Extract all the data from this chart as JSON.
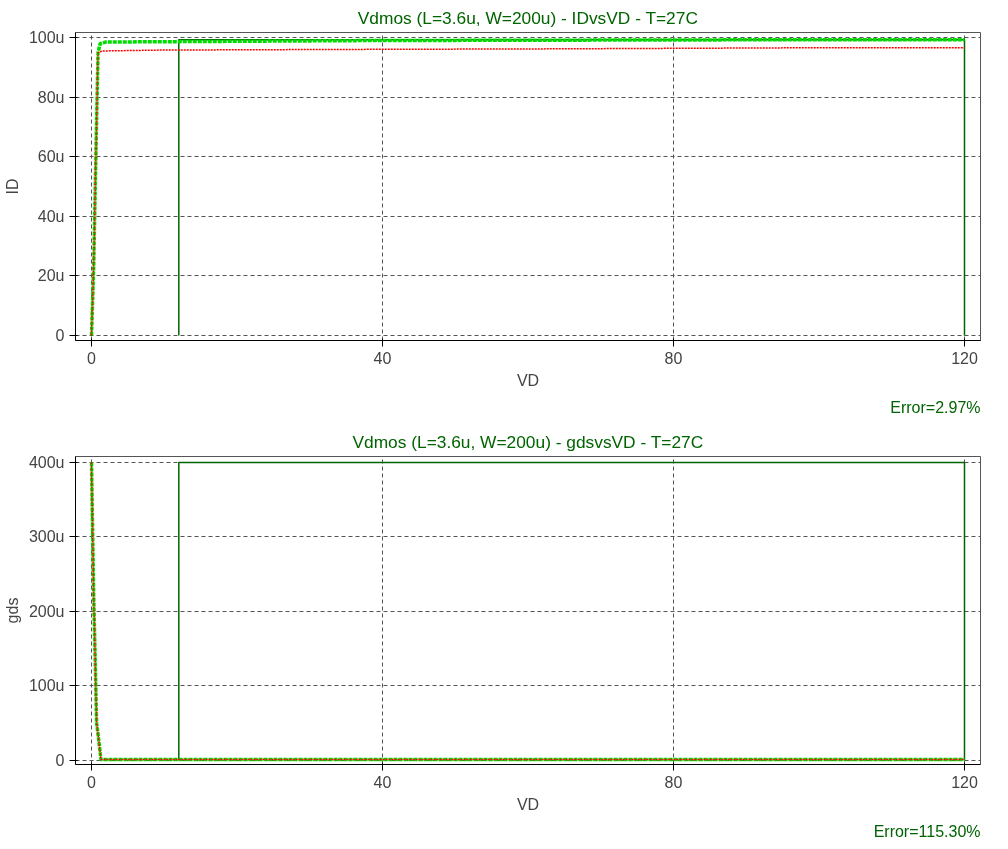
{
  "chart_data": [
    {
      "type": "line",
      "title": "Vdmos (L=3.6u, W=200u) - IDvsVD - T=27C",
      "xlabel": "VD",
      "ylabel": "ID",
      "xlim": [
        -2.2,
        122.2
      ],
      "xticks": [
        0,
        40,
        80,
        120
      ],
      "ylim": [
        -1.7,
        101.7
      ],
      "yticks": [
        {
          "value": 0,
          "label": "0"
        },
        {
          "value": 20,
          "label": "20u"
        },
        {
          "value": 40,
          "label": "40u"
        },
        {
          "value": 60,
          "label": "60u"
        },
        {
          "value": 80,
          "label": "80u"
        },
        {
          "value": 100,
          "label": "100u"
        }
      ],
      "grid": true,
      "series": [
        {
          "color": "#006400",
          "line_style": "solid",
          "x": [
            12,
            12,
            120,
            120
          ],
          "values": [
            0,
            99.3,
            99.3,
            0
          ]
        },
        {
          "color": "#00dd00",
          "line_style": "dashed",
          "x": [
            0,
            0.3,
            0.5,
            0.7,
            0.9,
            1.2,
            2,
            38.5,
            103,
            120
          ],
          "values": [
            0,
            23,
            48,
            72,
            95,
            98,
            98.5,
            99,
            99.3,
            99.3
          ]
        },
        {
          "color": "#ff0000",
          "line_style": "dotted",
          "x": [
            0,
            0.3,
            0.5,
            0.7,
            0.9,
            1.5,
            9.5,
            32.5,
            62,
            101,
            120
          ],
          "values": [
            0,
            23,
            48,
            72,
            95,
            95.5,
            95.8,
            96.0,
            96.2,
            96.6,
            96.6
          ]
        }
      ],
      "annotations": [
        "Error=2.97%"
      ]
    },
    {
      "type": "line",
      "title": "Vdmos (L=3.6u, W=200u) - gdsvsVD - T=27C",
      "xlabel": "VD",
      "ylabel": "gds",
      "xlim": [
        -2.2,
        122.2
      ],
      "xticks": [
        0,
        40,
        80,
        120
      ],
      "ylim": [
        -5.6,
        408
      ],
      "yticks": [
        {
          "value": 0,
          "label": "0"
        },
        {
          "value": 100,
          "label": "100u"
        },
        {
          "value": 200,
          "label": "200u"
        },
        {
          "value": 300,
          "label": "300u"
        },
        {
          "value": 400,
          "label": "400u"
        }
      ],
      "grid": true,
      "series": [
        {
          "color": "#006400",
          "line_style": "solid",
          "x": [
            12,
            12,
            120,
            120
          ],
          "values": [
            0,
            400,
            400,
            0
          ]
        },
        {
          "color": "#00dd00",
          "line_style": "dashed",
          "x": [
            0,
            0.15,
            0.3,
            0.5,
            0.7,
            0.9,
            1.1,
            1.3,
            120
          ],
          "values": [
            400,
            310,
            222,
            138,
            50,
            35,
            18,
            1,
            1
          ]
        },
        {
          "color": "#ff0000",
          "line_style": "dotted",
          "x": [
            0,
            0.15,
            0.3,
            0.5,
            0.7,
            0.9,
            1.1,
            1.3,
            120
          ],
          "values": [
            400,
            310,
            222,
            138,
            50,
            35,
            18,
            1,
            1
          ]
        }
      ],
      "annotations": [
        "Error=115.30%"
      ]
    }
  ]
}
